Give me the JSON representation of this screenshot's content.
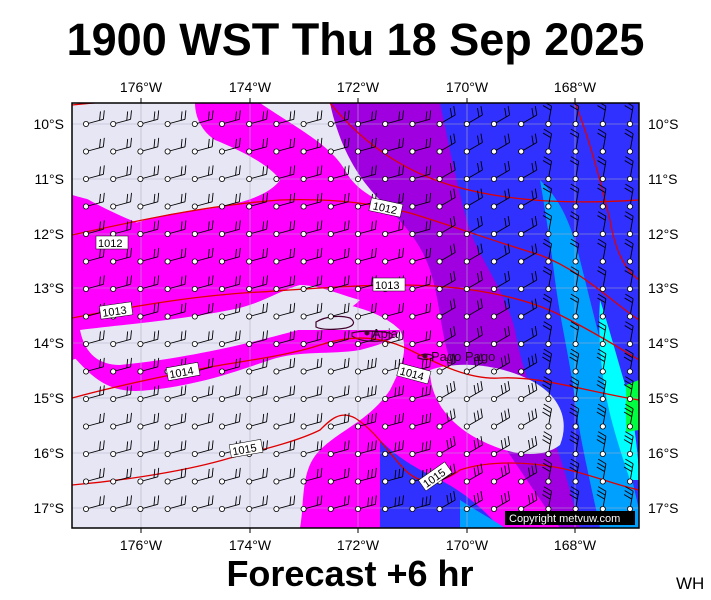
{
  "title": "1900 WST Thu 18 Sep 2025",
  "footer": "Forecast +6 hr",
  "region_code": "WH",
  "copyright": "Copyright metvuw.com",
  "map": {
    "lon_ticks": [
      "176°W",
      "174°W",
      "172°W",
      "170°W",
      "168°W"
    ],
    "lat_ticks": [
      "10°S",
      "11°S",
      "12°S",
      "13°S",
      "14°S",
      "15°S",
      "16°S",
      "17°S"
    ],
    "places": [
      {
        "name": "Apia"
      },
      {
        "name": "Pago Pago"
      }
    ],
    "isobar_labels": [
      "1012",
      "1012",
      "1013",
      "1013",
      "1014",
      "1014",
      "1015",
      "1015"
    ],
    "colors": {
      "background": "#e6e6f5",
      "rain_light": "#ff00ff",
      "rain_moderate": "#a000e0",
      "rain_heavy": "#3030ff",
      "rain_heavier": "#00a0ff",
      "rain_very_heavy": "#00ffff",
      "rain_extreme": "#00ff40",
      "isobar": "#e00000",
      "wind_barb": "#000000"
    }
  }
}
